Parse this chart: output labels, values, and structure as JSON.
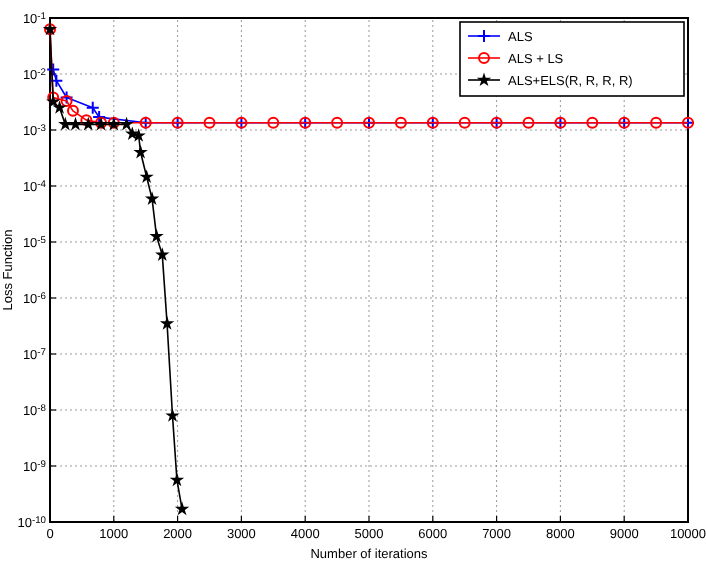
{
  "chart_data": {
    "type": "line",
    "xlabel": "Number of iterations",
    "ylabel": "Loss Function",
    "log": "y",
    "grid": true,
    "legend": "top right",
    "line_style": "solid",
    "xlim": [
      0,
      10000
    ],
    "xticks": [
      0,
      1000,
      2000,
      3000,
      4000,
      5000,
      6000,
      7000,
      8000,
      9000,
      10000
    ],
    "ylim": [
      1e-10,
      0.1
    ],
    "yticks": [
      {
        "value": 1e-10,
        "label": "10$^{-10}$"
      },
      {
        "value": 1e-09,
        "label": "10$^{-9}$"
      },
      {
        "value": 1e-08,
        "label": "10$^{-8}$"
      },
      {
        "value": 1e-07,
        "label": "10$^{-7}$"
      },
      {
        "value": 1e-06,
        "label": "10$^{-6}$"
      },
      {
        "value": 1e-05,
        "label": "10$^{-5}$"
      },
      {
        "value": 0.0001,
        "label": "10$^{-4}$"
      },
      {
        "value": 0.001,
        "label": "10$^{-3}$"
      },
      {
        "value": 0.01,
        "label": "10$^{-2}$"
      },
      {
        "value": 0.1,
        "label": "10$^{-1}$"
      }
    ],
    "series": [
      {
        "name": "ALS",
        "color": "#0000ff",
        "marker": "cross",
        "x": [
          50,
          100,
          260,
          670,
          770,
          1500,
          2000,
          3000,
          4000,
          5000,
          6000,
          7000,
          8000,
          9000,
          10000
        ],
        "values": [
          0.012,
          0.0076,
          0.0038,
          0.0025,
          0.0017,
          0.00135,
          0.00135,
          0.00135,
          0.00135,
          0.00135,
          0.00135,
          0.00135,
          0.00135,
          0.00135,
          0.00135
        ]
      },
      {
        "name": "ALS + LS",
        "color": "#ff0000",
        "marker": "circle",
        "x": [
          0,
          50,
          260,
          360,
          570,
          800,
          1000,
          1500,
          2000,
          2500,
          3000,
          3500,
          4000,
          4500,
          5000,
          5500,
          6000,
          6500,
          7000,
          7500,
          8000,
          8500,
          9000,
          9500,
          10000
        ],
        "values": [
          0.063,
          0.0038,
          0.0033,
          0.0022,
          0.0015,
          0.00135,
          0.00135,
          0.00135,
          0.00135,
          0.00135,
          0.00135,
          0.00135,
          0.00135,
          0.00135,
          0.00135,
          0.00135,
          0.00135,
          0.00135,
          0.00135,
          0.00135,
          0.00135,
          0.00135,
          0.00135,
          0.00135,
          0.00135
        ]
      },
      {
        "name": "ALS+ELS(R, R, R, R)",
        "color": "#000000",
        "marker": "star",
        "x": [
          0,
          50,
          150,
          240,
          400,
          600,
          800,
          1000,
          1200,
          1290,
          1390,
          1420,
          1515,
          1600,
          1670,
          1760,
          1835,
          1920,
          1990,
          2070
        ],
        "values": [
          0.063,
          0.0032,
          0.0025,
          0.00126,
          0.00126,
          0.00126,
          0.00126,
          0.00126,
          0.00126,
          0.00085,
          0.00079,
          0.0004,
          0.000145,
          5.9e-05,
          1.26e-05,
          5.9e-06,
          3.5e-07,
          7.9e-09,
          5.6e-10,
          1.7e-10
        ]
      }
    ]
  }
}
